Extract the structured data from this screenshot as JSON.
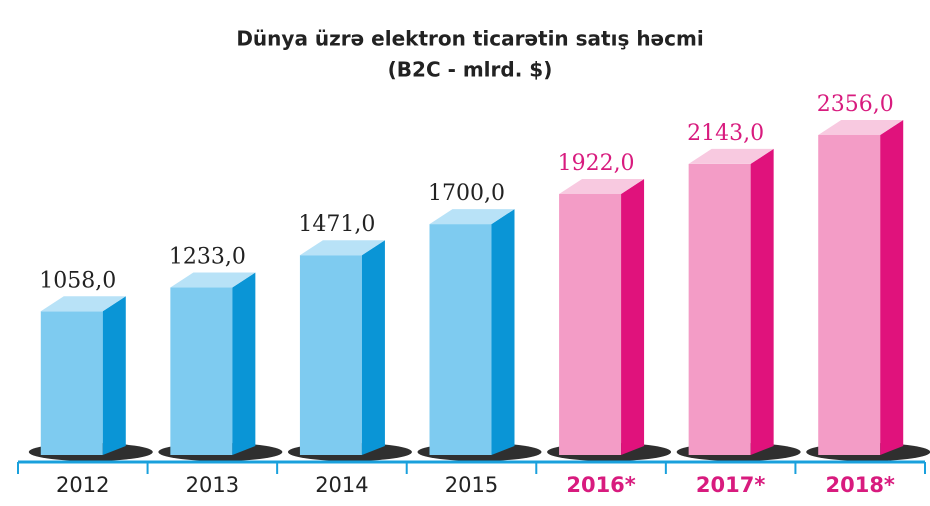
{
  "chart_data": {
    "type": "bar3d",
    "title": "Dünya üzrə elektron ticarətin satış həcmi",
    "subtitle": "(B2C - mlrd. $)",
    "categories": [
      "2012",
      "2013",
      "2014",
      "2015",
      "2016*",
      "2017*",
      "2018*"
    ],
    "values": [
      1058,
      1233,
      1471,
      1700,
      1922,
      2143,
      2356
    ],
    "value_labels": [
      "1058,0",
      "1233,0",
      "1471,0",
      "1700,0",
      "1922,0",
      "2143,0",
      "2356,0"
    ],
    "colors": [
      "#7ecbf0",
      "#7ecbf0",
      "#7ecbf0",
      "#7ecbf0",
      "#f39cc6",
      "#f39cc6",
      "#f39cc6"
    ],
    "side_colors": [
      "#0a95d6",
      "#0a95d6",
      "#0a95d6",
      "#0a95d6",
      "#e0127c",
      "#e0127c",
      "#e0127c"
    ],
    "label_colors": [
      "#222222",
      "#222222",
      "#222222",
      "#222222",
      "#d81b7e",
      "#d81b7e",
      "#d81b7e"
    ]
  }
}
